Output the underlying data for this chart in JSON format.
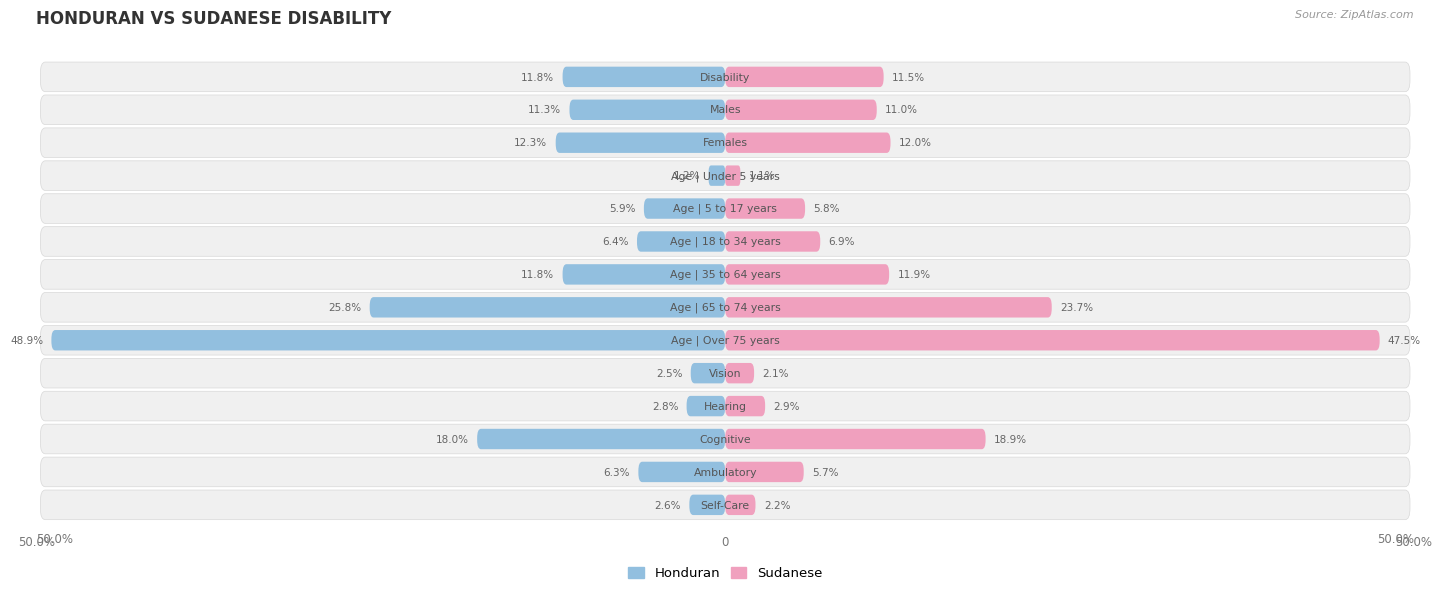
{
  "title": "HONDURAN VS SUDANESE DISABILITY",
  "source": "Source: ZipAtlas.com",
  "categories": [
    "Disability",
    "Males",
    "Females",
    "Age | Under 5 years",
    "Age | 5 to 17 years",
    "Age | 18 to 34 years",
    "Age | 35 to 64 years",
    "Age | 65 to 74 years",
    "Age | Over 75 years",
    "Vision",
    "Hearing",
    "Cognitive",
    "Ambulatory",
    "Self-Care"
  ],
  "honduran": [
    11.8,
    11.3,
    12.3,
    1.2,
    5.9,
    6.4,
    11.8,
    25.8,
    48.9,
    2.5,
    2.8,
    18.0,
    6.3,
    2.6
  ],
  "sudanese": [
    11.5,
    11.0,
    12.0,
    1.1,
    5.8,
    6.9,
    11.9,
    23.7,
    47.5,
    2.1,
    2.9,
    18.9,
    5.7,
    2.2
  ],
  "honduran_color": "#92bfdf",
  "sudanese_color": "#f0a0be",
  "honduran_full_color": "#5b9fd8",
  "sudanese_full_color": "#e8608a",
  "axis_max": 50.0,
  "bg_color": "#ffffff",
  "row_bg": "#f0f0f0",
  "row_border": "#e0e0e0"
}
